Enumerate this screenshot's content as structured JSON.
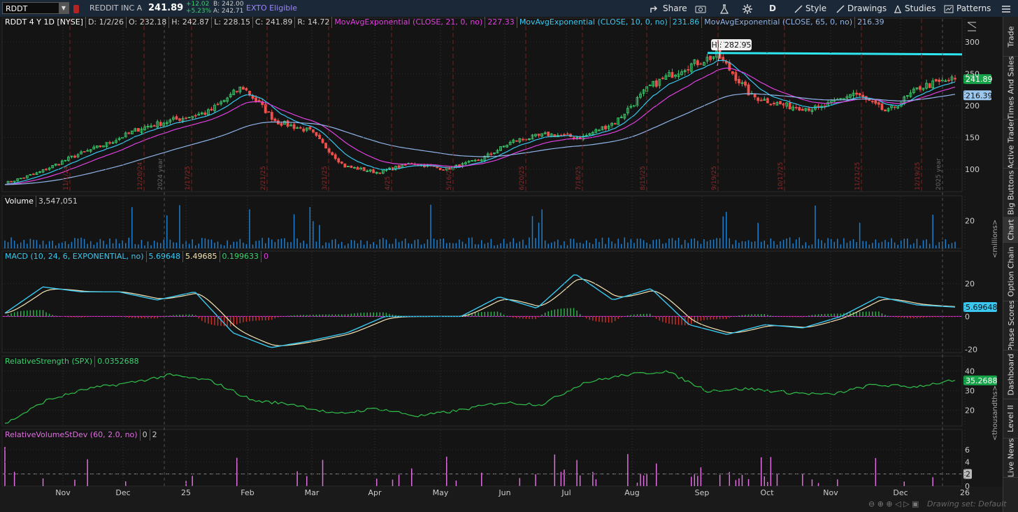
{
  "toolbar": {
    "symbol": "RDDT",
    "company": "REDDIT INC A",
    "last": "241.89",
    "change": "+12.02",
    "change_pct": "+5.23%",
    "bid": "B: 242.00",
    "ask": "A: 242.71",
    "exto": "EXTO Eligible",
    "share": "Share",
    "aggregation": "D",
    "style": "Style",
    "drawings": "Drawings",
    "studies": "Studies",
    "patterns": "Patterns",
    "colors": {
      "up": "#3bd16f",
      "accent": "#1a9fff",
      "exto": "#9d86ff"
    }
  },
  "right_tabs": [
    "Trade",
    "Times And Sales",
    "Active Trader",
    "Big Buttons",
    "Chart",
    "Option Chain",
    "Phase Scores",
    "Dashboard",
    "Level II",
    "Live News"
  ],
  "price_pane": {
    "title": "RDDT 4 Y 1D [NYSE]",
    "date": "D: 1/2/26",
    "open": "O: 232.18",
    "high": "H: 242.87",
    "low": "L: 228.15",
    "close": "C: 241.89",
    "range": "R: 14.72",
    "ema21_label": "MovAvgExponential (CLOSE, 21, 0, no)",
    "ema21_value": "227.33",
    "ema10_label": "MovAvgExponential (CLOSE, 10, 0, no)",
    "ema10_value": "231.86",
    "ema65_label": "MovAvgExponential (CLOSE, 65, 0, no)",
    "ema65_value": "216.39",
    "hi_label": "Hi: 282.95",
    "last_tag": "241.89",
    "ema65_tag": "216.39",
    "year_2024": "2024 year",
    "year_2025": "2025 year",
    "colors": {
      "ema21": "#e040e0",
      "ema10": "#3ac8f0",
      "ema65": "#8fb4e8",
      "resistance": "#2ee6f0",
      "up": "#3bd16f",
      "down": "#f0504b"
    }
  },
  "volume_pane": {
    "title": "Volume",
    "value": "3,547,051",
    "units": "<millions>"
  },
  "macd_pane": {
    "title": "MACD (10, 24, 6, EXPONENTIAL, no)",
    "value": "5.69648",
    "avg": "5.49685",
    "diff": "0.199633",
    "zero": "0",
    "tag": "5.69648"
  },
  "rs_pane": {
    "title": "RelativeStrength (SPX)",
    "value": "0.0352688",
    "tag": "35.2688",
    "units": "<thousandths>"
  },
  "rvs_pane": {
    "title": "RelativeVolumeStDev (60, 2.0, no)",
    "v1": "0",
    "v2": "2",
    "tag": "2"
  },
  "drawing_set": "Drawing set: Default",
  "chart_data": [
    {
      "type": "candlestick",
      "title": "RDDT 4 Y 1D [NYSE]",
      "x_labels": [
        "Nov",
        "Dec",
        "25",
        "Feb",
        "Mar",
        "Apr",
        "May",
        "Jun",
        "Jul",
        "Aug",
        "Sep",
        "Oct",
        "Nov",
        "Dec",
        "26"
      ],
      "event_dates": [
        "11/1/24",
        "12/20/24",
        "1/17/25",
        "2/21/25",
        "3/21/25",
        "4/25",
        "5/16/25",
        "6/20/25",
        "7/18/25",
        "8/15/25",
        "9/19/25",
        "10/17/25",
        "11/21/25",
        "12/19/25"
      ],
      "y_ticks": [
        100,
        150,
        200,
        250,
        300
      ],
      "ylim": [
        65,
        320
      ],
      "approx_close_path": [
        78,
        95,
        120,
        140,
        165,
        178,
        190,
        230,
        175,
        160,
        105,
        95,
        110,
        100,
        115,
        145,
        155,
        150,
        175,
        230,
        260,
        280,
        215,
        200,
        195,
        220,
        190,
        230,
        242
      ],
      "resistance_level": 282.95,
      "last_close": 241.89,
      "ema10_last": 231.86,
      "ema21_last": 227.33,
      "ema65_last": 216.39
    },
    {
      "type": "bar",
      "title": "Volume",
      "y_ticks": [
        20
      ],
      "units": "millions",
      "last": 3547051
    },
    {
      "type": "line",
      "title": "MACD (10, 24, 6, EXPONENTIAL, no)",
      "y_ticks": [
        -20,
        0,
        20
      ],
      "ylim": [
        -22,
        33
      ],
      "macd_path": [
        2,
        18,
        15,
        15,
        10,
        15,
        -10,
        -19,
        -15,
        -10,
        0,
        0,
        0,
        12,
        5,
        26,
        10,
        17,
        -5,
        -11,
        -5,
        -7,
        0,
        12,
        7,
        5.7
      ],
      "last_macd": 5.69648,
      "last_avg": 5.49685,
      "last_diff": 0.199633
    },
    {
      "type": "line",
      "title": "RelativeStrength (SPX)",
      "y_ticks": [
        20,
        30,
        40
      ],
      "ylim": [
        12,
        42
      ],
      "units": "thousandths",
      "path": [
        13,
        25,
        31,
        34,
        38,
        35,
        25,
        23,
        18,
        21,
        17,
        20,
        24,
        23,
        34,
        38,
        40,
        30,
        31,
        29,
        28,
        33,
        32,
        35.27
      ],
      "last": 35.2688
    },
    {
      "type": "bar",
      "title": "RelativeVolumeStDev (60, 2.0, no)",
      "y_ticks": [
        0,
        2,
        4,
        6
      ],
      "threshold": 2
    }
  ]
}
